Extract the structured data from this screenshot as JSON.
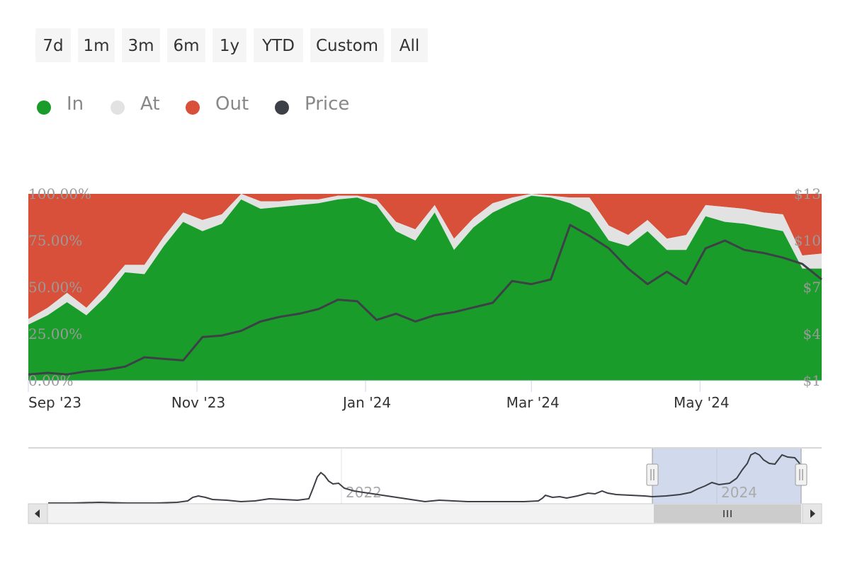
{
  "range_selector": {
    "buttons": [
      "7d",
      "1m",
      "3m",
      "6m",
      "1y",
      "YTD",
      "Custom",
      "All"
    ]
  },
  "legend": [
    {
      "label": "In",
      "color": "#1a9c2b"
    },
    {
      "label": "At",
      "color": "#e2e2e2"
    },
    {
      "label": "Out",
      "color": "#d9503a"
    },
    {
      "label": "Price",
      "color": "#3d4046"
    }
  ],
  "navigator": {
    "labels": [
      "2022",
      "2024"
    ],
    "selected_range": [
      "Sep '23",
      "Jun '24"
    ]
  },
  "chart_data": {
    "type": "area",
    "stacking": "percent",
    "x_labels": [
      "Sep '23",
      "Nov '23",
      "Jan '24",
      "Mar '24",
      "May '24"
    ],
    "x": [
      "2023-09-01",
      "2023-09-08",
      "2023-09-15",
      "2023-09-22",
      "2023-09-29",
      "2023-10-06",
      "2023-10-13",
      "2023-10-20",
      "2023-10-27",
      "2023-11-03",
      "2023-11-10",
      "2023-11-17",
      "2023-11-24",
      "2023-12-01",
      "2023-12-08",
      "2023-12-15",
      "2023-12-22",
      "2023-12-29",
      "2024-01-05",
      "2024-01-12",
      "2024-01-19",
      "2024-01-26",
      "2024-02-02",
      "2024-02-09",
      "2024-02-16",
      "2024-02-23",
      "2024-03-01",
      "2024-03-08",
      "2024-03-15",
      "2024-03-22",
      "2024-03-29",
      "2024-04-05",
      "2024-04-12",
      "2024-04-19",
      "2024-04-26",
      "2024-05-03",
      "2024-05-10",
      "2024-05-17",
      "2024-05-24",
      "2024-05-31",
      "2024-06-07",
      "2024-06-14"
    ],
    "series": [
      {
        "name": "In",
        "values": [
          30,
          35,
          42,
          35,
          45,
          58,
          57,
          72,
          85,
          80,
          84,
          97,
          92,
          93,
          94,
          95,
          97,
          98,
          94,
          80,
          75,
          90,
          70,
          82,
          90,
          95,
          99,
          98,
          95,
          90,
          75,
          72,
          80,
          70,
          70,
          88,
          85,
          84,
          82,
          80,
          60,
          60
        ]
      },
      {
        "name": "At",
        "values": [
          3,
          4,
          5,
          4,
          5,
          4,
          5,
          5,
          5,
          6,
          5,
          3,
          4,
          3,
          3,
          2,
          2,
          1,
          3,
          5,
          6,
          4,
          6,
          5,
          5,
          3,
          1,
          1,
          3,
          8,
          8,
          6,
          6,
          6,
          8,
          6,
          8,
          8,
          8,
          9,
          7,
          8
        ]
      },
      {
        "name": "Out",
        "values": [
          67,
          61,
          53,
          61,
          50,
          38,
          38,
          23,
          10,
          14,
          11,
          0,
          4,
          4,
          3,
          3,
          1,
          1,
          3,
          15,
          19,
          6,
          24,
          13,
          5,
          2,
          0,
          1,
          2,
          2,
          17,
          22,
          14,
          24,
          22,
          6,
          7,
          8,
          10,
          11,
          33,
          32
        ]
      },
      {
        "name": "Price",
        "values": [
          1.4,
          1.5,
          1.4,
          1.6,
          1.7,
          1.9,
          2.5,
          2.4,
          2.3,
          3.8,
          3.9,
          4.2,
          4.8,
          5.1,
          5.3,
          5.6,
          6.2,
          6.1,
          4.9,
          5.3,
          4.8,
          5.2,
          5.4,
          5.7,
          6.0,
          7.4,
          7.2,
          7.5,
          11.0,
          10.3,
          9.5,
          8.2,
          7.2,
          8.0,
          7.2,
          9.5,
          10.0,
          9.4,
          9.2,
          8.9,
          8.5,
          7.5
        ]
      }
    ],
    "y_left": {
      "ticks": [
        "0.00%",
        "25.00%",
        "50.00%",
        "75.00%",
        "100.00%"
      ],
      "range": [
        0,
        100
      ]
    },
    "y_right": {
      "ticks": [
        "$1",
        "$4",
        "$7",
        "$10",
        "$13"
      ],
      "range": [
        1,
        13
      ]
    }
  }
}
